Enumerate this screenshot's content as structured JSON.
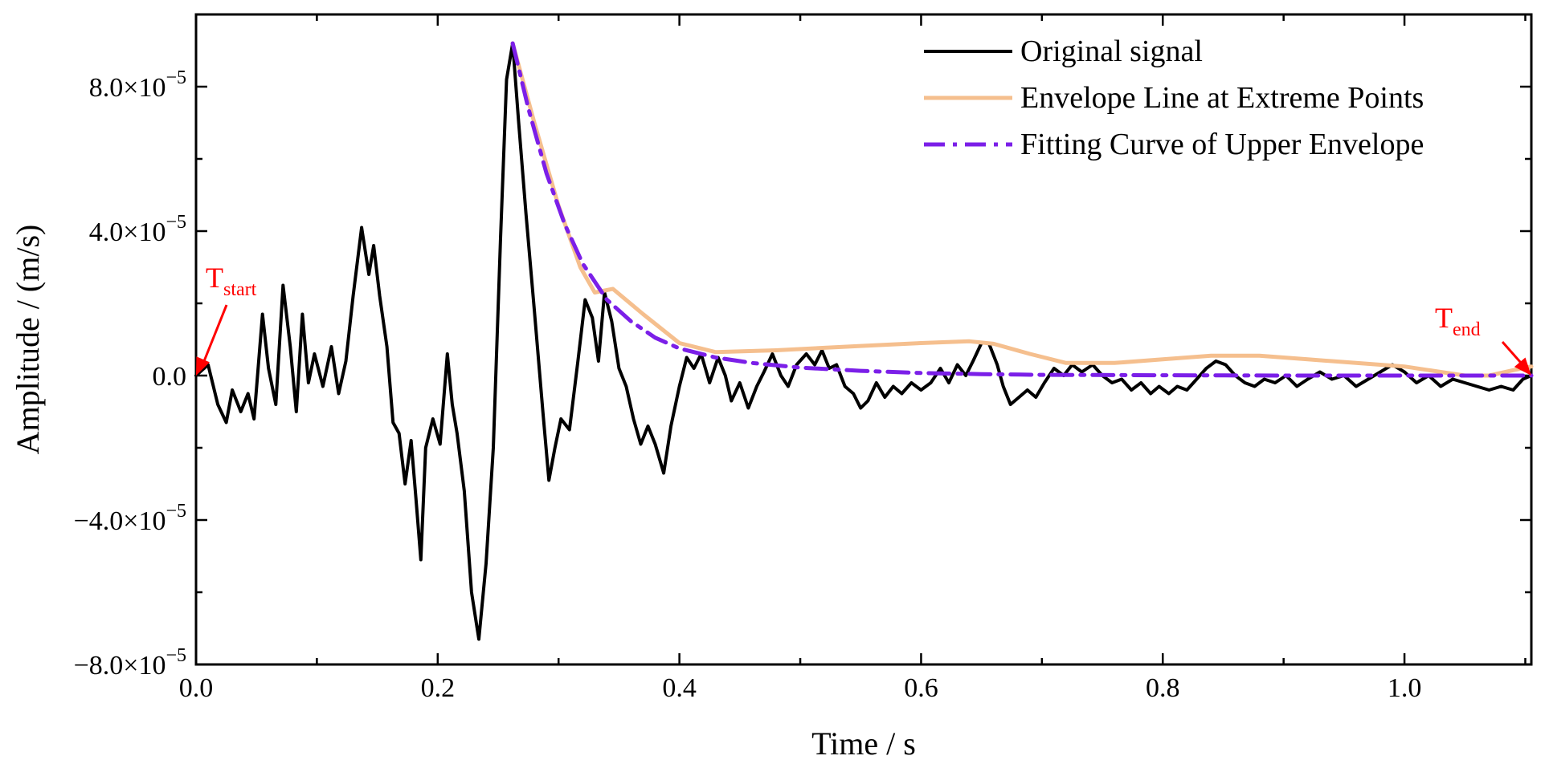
{
  "chart_data": {
    "type": "line",
    "title": "",
    "xlabel": "Time / s",
    "ylabel": "Amplitude / (m/s)",
    "xlim": [
      0,
      1.105
    ],
    "ylim": [
      -8e-05,
      0.0001
    ],
    "x_ticks": [
      0.0,
      0.2,
      0.4,
      0.6,
      0.8,
      1.0
    ],
    "x_tick_labels": [
      "0.0",
      "0.2",
      "0.4",
      "0.6",
      "0.8",
      "1.0"
    ],
    "y_ticks": [
      -8e-05,
      -4e-05,
      0.0,
      4e-05,
      8e-05
    ],
    "y_tick_labels": [
      {
        "mantissa": "−8.0×10",
        "exp": "−5"
      },
      {
        "mantissa": "−4.0×10",
        "exp": "−5"
      },
      {
        "mantissa": "0.0",
        "exp": ""
      },
      {
        "mantissa": "4.0×10",
        "exp": "−5"
      },
      {
        "mantissa": "8.0×10",
        "exp": "−5"
      }
    ],
    "legend_position": "top-right",
    "grid": false,
    "series": [
      {
        "name": "Original signal",
        "color": "#000000",
        "style": "solid",
        "points": [
          [
            0.0,
            0.0
          ],
          [
            0.01,
            3e-06
          ],
          [
            0.018,
            -8e-06
          ],
          [
            0.025,
            -1.3e-05
          ],
          [
            0.03,
            -4e-06
          ],
          [
            0.037,
            -1e-05
          ],
          [
            0.043,
            -5e-06
          ],
          [
            0.048,
            -1.2e-05
          ],
          [
            0.055,
            1.7e-05
          ],
          [
            0.06,
            2e-06
          ],
          [
            0.066,
            -8e-06
          ],
          [
            0.072,
            2.5e-05
          ],
          [
            0.078,
            8e-06
          ],
          [
            0.083,
            -1e-05
          ],
          [
            0.088,
            1.7e-05
          ],
          [
            0.093,
            -2e-06
          ],
          [
            0.098,
            6e-06
          ],
          [
            0.105,
            -3e-06
          ],
          [
            0.112,
            8e-06
          ],
          [
            0.118,
            -5e-06
          ],
          [
            0.124,
            4e-06
          ],
          [
            0.13,
            2.2e-05
          ],
          [
            0.137,
            4.1e-05
          ],
          [
            0.143,
            2.8e-05
          ],
          [
            0.147,
            3.6e-05
          ],
          [
            0.152,
            2.2e-05
          ],
          [
            0.158,
            8e-06
          ],
          [
            0.163,
            -1.3e-05
          ],
          [
            0.168,
            -1.6e-05
          ],
          [
            0.173,
            -3e-05
          ],
          [
            0.178,
            -1.8e-05
          ],
          [
            0.182,
            -3.4e-05
          ],
          [
            0.186,
            -5.1e-05
          ],
          [
            0.19,
            -2e-05
          ],
          [
            0.196,
            -1.2e-05
          ],
          [
            0.202,
            -1.9e-05
          ],
          [
            0.208,
            6e-06
          ],
          [
            0.212,
            -8e-06
          ],
          [
            0.216,
            -1.6e-05
          ],
          [
            0.222,
            -3.2e-05
          ],
          [
            0.228,
            -6e-05
          ],
          [
            0.234,
            -7.3e-05
          ],
          [
            0.24,
            -5.2e-05
          ],
          [
            0.246,
            -2e-05
          ],
          [
            0.252,
            3.8e-05
          ],
          [
            0.257,
            8.2e-05
          ],
          [
            0.262,
            9.2e-05
          ],
          [
            0.267,
            7e-05
          ],
          [
            0.273,
            4.5e-05
          ],
          [
            0.28,
            1.8e-05
          ],
          [
            0.287,
            -1e-05
          ],
          [
            0.292,
            -2.9e-05
          ],
          [
            0.297,
            -2e-05
          ],
          [
            0.302,
            -1.2e-05
          ],
          [
            0.309,
            -1.5e-05
          ],
          [
            0.316,
            4e-06
          ],
          [
            0.322,
            2.1e-05
          ],
          [
            0.328,
            1.6e-05
          ],
          [
            0.333,
            4e-06
          ],
          [
            0.338,
            2.3e-05
          ],
          [
            0.344,
            1.5e-05
          ],
          [
            0.35,
            2e-06
          ],
          [
            0.356,
            -3e-06
          ],
          [
            0.362,
            -1.2e-05
          ],
          [
            0.368,
            -1.9e-05
          ],
          [
            0.374,
            -1.4e-05
          ],
          [
            0.38,
            -1.9e-05
          ],
          [
            0.387,
            -2.7e-05
          ],
          [
            0.393,
            -1.4e-05
          ],
          [
            0.4,
            -3e-06
          ],
          [
            0.406,
            5e-06
          ],
          [
            0.412,
            2e-06
          ],
          [
            0.418,
            6e-06
          ],
          [
            0.425,
            -2e-06
          ],
          [
            0.432,
            5e-06
          ],
          [
            0.438,
            0.0
          ],
          [
            0.443,
            -7e-06
          ],
          [
            0.45,
            -2e-06
          ],
          [
            0.457,
            -9e-06
          ],
          [
            0.464,
            -3e-06
          ],
          [
            0.47,
            1e-06
          ],
          [
            0.477,
            6e-06
          ],
          [
            0.484,
            0.0
          ],
          [
            0.49,
            -3e-06
          ],
          [
            0.497,
            3e-06
          ],
          [
            0.505,
            6e-06
          ],
          [
            0.512,
            3e-06
          ],
          [
            0.518,
            7e-06
          ],
          [
            0.524,
            2e-06
          ],
          [
            0.53,
            3e-06
          ],
          [
            0.537,
            -3e-06
          ],
          [
            0.544,
            -5e-06
          ],
          [
            0.55,
            -9e-06
          ],
          [
            0.556,
            -7e-06
          ],
          [
            0.563,
            -2e-06
          ],
          [
            0.57,
            -6e-06
          ],
          [
            0.577,
            -3e-06
          ],
          [
            0.584,
            -5e-06
          ],
          [
            0.592,
            -2e-06
          ],
          [
            0.6,
            -4e-06
          ],
          [
            0.608,
            -2e-06
          ],
          [
            0.616,
            2e-06
          ],
          [
            0.623,
            -2e-06
          ],
          [
            0.63,
            3e-06
          ],
          [
            0.637,
            0.0
          ],
          [
            0.643,
            4e-06
          ],
          [
            0.65,
            9e-06
          ],
          [
            0.656,
            9e-06
          ],
          [
            0.663,
            3e-06
          ],
          [
            0.668,
            -3e-06
          ],
          [
            0.674,
            -8e-06
          ],
          [
            0.681,
            -6e-06
          ],
          [
            0.688,
            -4e-06
          ],
          [
            0.695,
            -6e-06
          ],
          [
            0.702,
            -2e-06
          ],
          [
            0.71,
            2e-06
          ],
          [
            0.718,
            0.0
          ],
          [
            0.725,
            3e-06
          ],
          [
            0.733,
            1e-06
          ],
          [
            0.742,
            3e-06
          ],
          [
            0.75,
            0.0
          ],
          [
            0.758,
            -2e-06
          ],
          [
            0.766,
            -1e-06
          ],
          [
            0.774,
            -4e-06
          ],
          [
            0.782,
            -2e-06
          ],
          [
            0.79,
            -5e-06
          ],
          [
            0.797,
            -3e-06
          ],
          [
            0.805,
            -5e-06
          ],
          [
            0.812,
            -3e-06
          ],
          [
            0.82,
            -4e-06
          ],
          [
            0.828,
            -1e-06
          ],
          [
            0.836,
            2e-06
          ],
          [
            0.844,
            4e-06
          ],
          [
            0.852,
            3e-06
          ],
          [
            0.86,
            0.0
          ],
          [
            0.868,
            -2e-06
          ],
          [
            0.876,
            -3e-06
          ],
          [
            0.884,
            -1e-06
          ],
          [
            0.893,
            -2e-06
          ],
          [
            0.902,
            0.0
          ],
          [
            0.911,
            -3e-06
          ],
          [
            0.92,
            -1e-06
          ],
          [
            0.93,
            1e-06
          ],
          [
            0.94,
            -1e-06
          ],
          [
            0.95,
            0.0
          ],
          [
            0.96,
            -3e-06
          ],
          [
            0.97,
            -1e-06
          ],
          [
            0.98,
            1e-06
          ],
          [
            0.99,
            3e-06
          ],
          [
            1.0,
            1e-06
          ],
          [
            1.01,
            -2e-06
          ],
          [
            1.02,
            0.0
          ],
          [
            1.03,
            -3e-06
          ],
          [
            1.04,
            -1e-06
          ],
          [
            1.05,
            -2e-06
          ],
          [
            1.06,
            -3e-06
          ],
          [
            1.07,
            -4e-06
          ],
          [
            1.08,
            -3e-06
          ],
          [
            1.09,
            -4e-06
          ],
          [
            1.098,
            -1e-06
          ],
          [
            1.105,
            0.0
          ]
        ]
      },
      {
        "name": "Envelope Line at Extreme Points",
        "color": "#f5bf8e",
        "style": "solid",
        "points": [
          [
            0.262,
            9.2e-05
          ],
          [
            0.28,
            7e-05
          ],
          [
            0.3,
            4.7e-05
          ],
          [
            0.318,
            3e-05
          ],
          [
            0.33,
            2.3e-05
          ],
          [
            0.345,
            2.4e-05
          ],
          [
            0.37,
            1.7e-05
          ],
          [
            0.4,
            9e-06
          ],
          [
            0.43,
            6.5e-06
          ],
          [
            0.48,
            7e-06
          ],
          [
            0.55,
            8.2e-06
          ],
          [
            0.6,
            9e-06
          ],
          [
            0.64,
            9.5e-06
          ],
          [
            0.66,
            8.8e-06
          ],
          [
            0.69,
            6e-06
          ],
          [
            0.72,
            3.5e-06
          ],
          [
            0.76,
            3.5e-06
          ],
          [
            0.8,
            4.5e-06
          ],
          [
            0.84,
            5.5e-06
          ],
          [
            0.88,
            5.5e-06
          ],
          [
            0.92,
            4.5e-06
          ],
          [
            0.96,
            3.5e-06
          ],
          [
            1.0,
            2.5e-06
          ],
          [
            1.03,
            1e-06
          ],
          [
            1.05,
            0.0
          ],
          [
            1.07,
            0.0
          ],
          [
            1.09,
            1.5e-06
          ],
          [
            1.105,
            2.5e-06
          ]
        ]
      },
      {
        "name": "Fitting Curve of Upper Envelope",
        "color": "#7b1fe8",
        "style": "dashdot",
        "points": [
          [
            0.262,
            9.2e-05
          ],
          [
            0.275,
            7.4e-05
          ],
          [
            0.29,
            5.6e-05
          ],
          [
            0.305,
            4.2e-05
          ],
          [
            0.32,
            3.1e-05
          ],
          [
            0.34,
            2.1e-05
          ],
          [
            0.36,
            1.5e-05
          ],
          [
            0.38,
            1.05e-05
          ],
          [
            0.4,
            7.5e-06
          ],
          [
            0.43,
            5e-06
          ],
          [
            0.46,
            3.5e-06
          ],
          [
            0.5,
            2.2e-06
          ],
          [
            0.55,
            1.3e-06
          ],
          [
            0.6,
            7e-07
          ],
          [
            0.65,
            4e-07
          ],
          [
            0.7,
            2e-07
          ],
          [
            0.8,
            1e-07
          ],
          [
            0.9,
            0.0
          ],
          [
            1.0,
            0.0
          ],
          [
            1.105,
            0.0
          ]
        ]
      }
    ],
    "annotations": [
      {
        "name": "t-start",
        "base": "T",
        "sub": "start",
        "color": "#ff0000",
        "target": [
          0.0,
          0.0
        ]
      },
      {
        "name": "t-end",
        "base": "T",
        "sub": "end",
        "color": "#ff0000",
        "target": [
          1.105,
          0.0
        ]
      }
    ]
  }
}
